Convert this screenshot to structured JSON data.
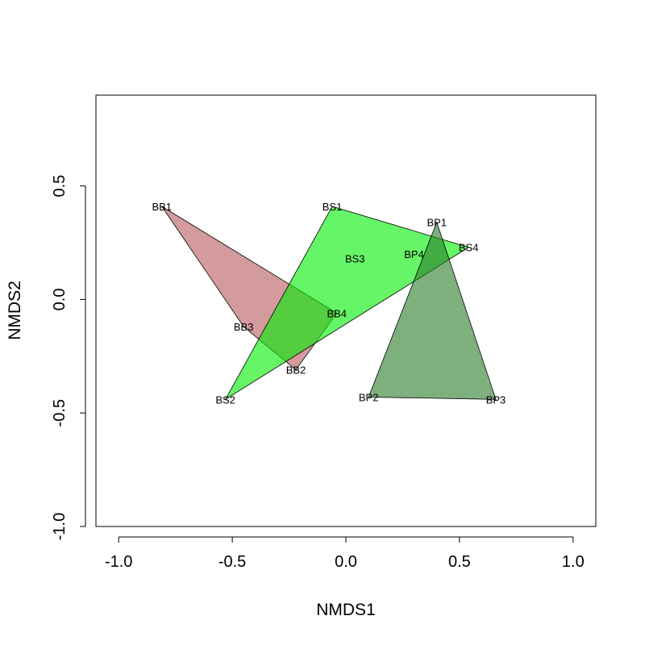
{
  "chart_data": {
    "type": "scatter",
    "title": "",
    "xlabel": "NMDS1",
    "ylabel": "NMDS2",
    "xlim": [
      -1.1,
      1.1
    ],
    "ylim": [
      -1.0,
      0.9
    ],
    "xticks": [
      -1.0,
      -0.5,
      0.0,
      0.5,
      1.0
    ],
    "yticks": [
      -1.0,
      -0.5,
      0.0,
      0.5
    ],
    "xtick_labels": [
      "-1.0",
      "-0.5",
      "0.0",
      "0.5",
      "1.0"
    ],
    "ytick_labels": [
      "-1.0",
      "-0.5",
      "0.0",
      "0.5"
    ],
    "grid": false,
    "points": [
      {
        "label": "BB1",
        "x": -0.81,
        "y": 0.41
      },
      {
        "label": "BB2",
        "x": -0.22,
        "y": -0.31
      },
      {
        "label": "BB3",
        "x": -0.45,
        "y": -0.12
      },
      {
        "label": "BB4",
        "x": -0.04,
        "y": -0.06
      },
      {
        "label": "BS1",
        "x": -0.06,
        "y": 0.41
      },
      {
        "label": "BS2",
        "x": -0.53,
        "y": -0.44
      },
      {
        "label": "BS3",
        "x": 0.04,
        "y": 0.18
      },
      {
        "label": "BS4",
        "x": 0.54,
        "y": 0.23
      },
      {
        "label": "BP1",
        "x": 0.4,
        "y": 0.34
      },
      {
        "label": "BP2",
        "x": 0.1,
        "y": -0.43
      },
      {
        "label": "BP3",
        "x": 0.66,
        "y": -0.44
      },
      {
        "label": "BP4",
        "x": 0.3,
        "y": 0.2
      }
    ],
    "hulls": [
      {
        "group": "BB",
        "color": "#b5585c",
        "vertices": [
          "BB1",
          "BB4",
          "BB2",
          "BB3"
        ]
      },
      {
        "group": "BS",
        "color": "#00ee00",
        "vertices": [
          "BS1",
          "BS4",
          "BS2"
        ]
      },
      {
        "group": "BP",
        "color": "#287c28",
        "vertices": [
          "BP1",
          "BP3",
          "BP2"
        ]
      }
    ]
  }
}
